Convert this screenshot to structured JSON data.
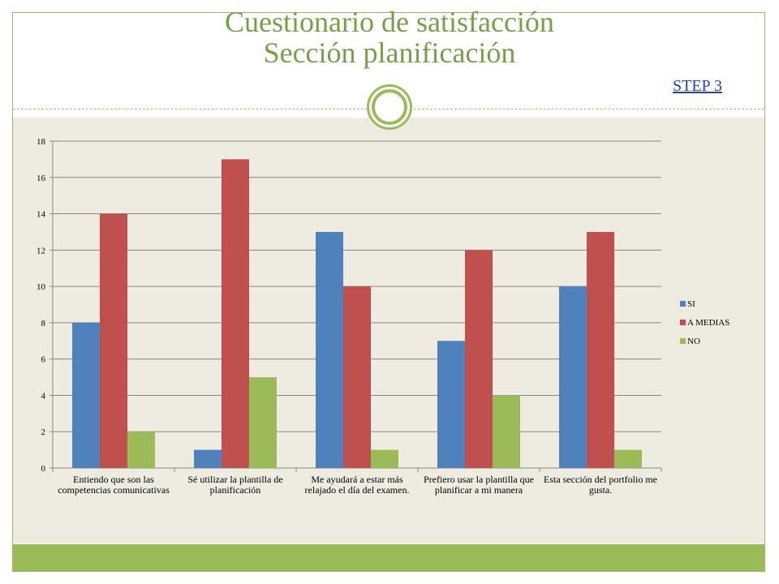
{
  "header": {
    "title_line1": "Cuestionario de satisfacción",
    "title_line2": "Sección planificación",
    "step_link": "STEP 3"
  },
  "colors": {
    "accent": "#9bbb59",
    "title": "#77a046",
    "background": "#eeece1",
    "link": "#1f3fd1"
  },
  "chart_data": {
    "type": "bar",
    "categories": [
      "Entiendo que son las competencias comunicativas",
      "Sé utilizar la plantilla de planificación",
      "Me ayudará a  estar más relajado el día del examen.",
      "Prefiero usar la plantilla que planificar  a mi manera",
      "Esta sección del portfolio me gusta."
    ],
    "series": [
      {
        "name": "SI",
        "color": "#4f81bd",
        "values": [
          8,
          1,
          13,
          7,
          10
        ]
      },
      {
        "name": "A MEDIAS",
        "color": "#c0504d",
        "values": [
          14,
          17,
          10,
          12,
          13
        ]
      },
      {
        "name": "NO",
        "color": "#9bbb59",
        "values": [
          2,
          5,
          1,
          4,
          1
        ]
      }
    ],
    "ylim": [
      0,
      18
    ],
    "yticks": [
      "0",
      "2",
      "4",
      "6",
      "8",
      "10",
      "12",
      "14",
      "16",
      "18"
    ],
    "grid": true,
    "legend_position": "right"
  }
}
